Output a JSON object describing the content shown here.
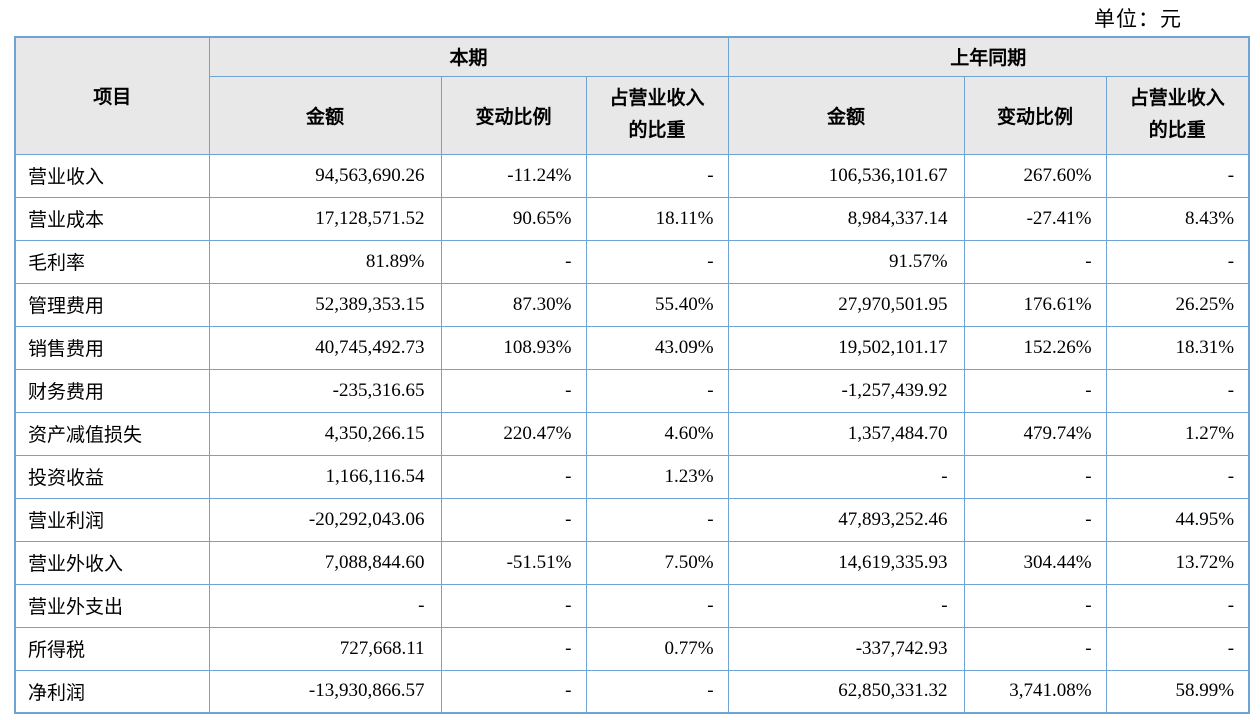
{
  "page": {
    "unit_label": "单位：元"
  },
  "table": {
    "header": {
      "item": "项目",
      "current_period": "本期",
      "prior_period": "上年同期",
      "amount": "金额",
      "change_ratio": "变动比例",
      "revenue_share": "占营业收入\n的比重"
    },
    "rows": [
      {
        "item": "营业收入",
        "cur_amount": "94,563,690.26",
        "cur_change": "-11.24%",
        "cur_share": "-",
        "prev_amount": "106,536,101.67",
        "prev_change": "267.60%",
        "prev_share": "-"
      },
      {
        "item": "营业成本",
        "cur_amount": "17,128,571.52",
        "cur_change": "90.65%",
        "cur_share": "18.11%",
        "prev_amount": "8,984,337.14",
        "prev_change": "-27.41%",
        "prev_share": "8.43%"
      },
      {
        "item": "毛利率",
        "cur_amount": "81.89%",
        "cur_change": "-",
        "cur_share": "-",
        "prev_amount": "91.57%",
        "prev_change": "-",
        "prev_share": "-"
      },
      {
        "item": "管理费用",
        "cur_amount": "52,389,353.15",
        "cur_change": "87.30%",
        "cur_share": "55.40%",
        "prev_amount": "27,970,501.95",
        "prev_change": "176.61%",
        "prev_share": "26.25%"
      },
      {
        "item": "销售费用",
        "cur_amount": "40,745,492.73",
        "cur_change": "108.93%",
        "cur_share": "43.09%",
        "prev_amount": "19,502,101.17",
        "prev_change": "152.26%",
        "prev_share": "18.31%"
      },
      {
        "item": "财务费用",
        "cur_amount": "-235,316.65",
        "cur_change": "-",
        "cur_share": "-",
        "prev_amount": "-1,257,439.92",
        "prev_change": "-",
        "prev_share": "-"
      },
      {
        "item": "资产减值损失",
        "cur_amount": "4,350,266.15",
        "cur_change": "220.47%",
        "cur_share": "4.60%",
        "prev_amount": "1,357,484.70",
        "prev_change": "479.74%",
        "prev_share": "1.27%"
      },
      {
        "item": "投资收益",
        "cur_amount": "1,166,116.54",
        "cur_change": "-",
        "cur_share": "1.23%",
        "prev_amount": "-",
        "prev_change": "-",
        "prev_share": "-"
      },
      {
        "item": "营业利润",
        "cur_amount": "-20,292,043.06",
        "cur_change": "-",
        "cur_share": "-",
        "prev_amount": "47,893,252.46",
        "prev_change": "-",
        "prev_share": "44.95%"
      },
      {
        "item": "营业外收入",
        "cur_amount": "7,088,844.60",
        "cur_change": "-51.51%",
        "cur_share": "7.50%",
        "prev_amount": "14,619,335.93",
        "prev_change": "304.44%",
        "prev_share": "13.72%"
      },
      {
        "item": "营业外支出",
        "cur_amount": "-",
        "cur_change": "-",
        "cur_share": "-",
        "prev_amount": "-",
        "prev_change": "-",
        "prev_share": "-"
      },
      {
        "item": "所得税",
        "cur_amount": "727,668.11",
        "cur_change": "-",
        "cur_share": "0.77%",
        "prev_amount": "-337,742.93",
        "prev_change": "-",
        "prev_share": "-"
      },
      {
        "item": "净利润",
        "cur_amount": "-13,930,866.57",
        "cur_change": "-",
        "cur_share": "-",
        "prev_amount": "62,850,331.32",
        "prev_change": "3,741.08%",
        "prev_share": "58.99%"
      }
    ]
  }
}
